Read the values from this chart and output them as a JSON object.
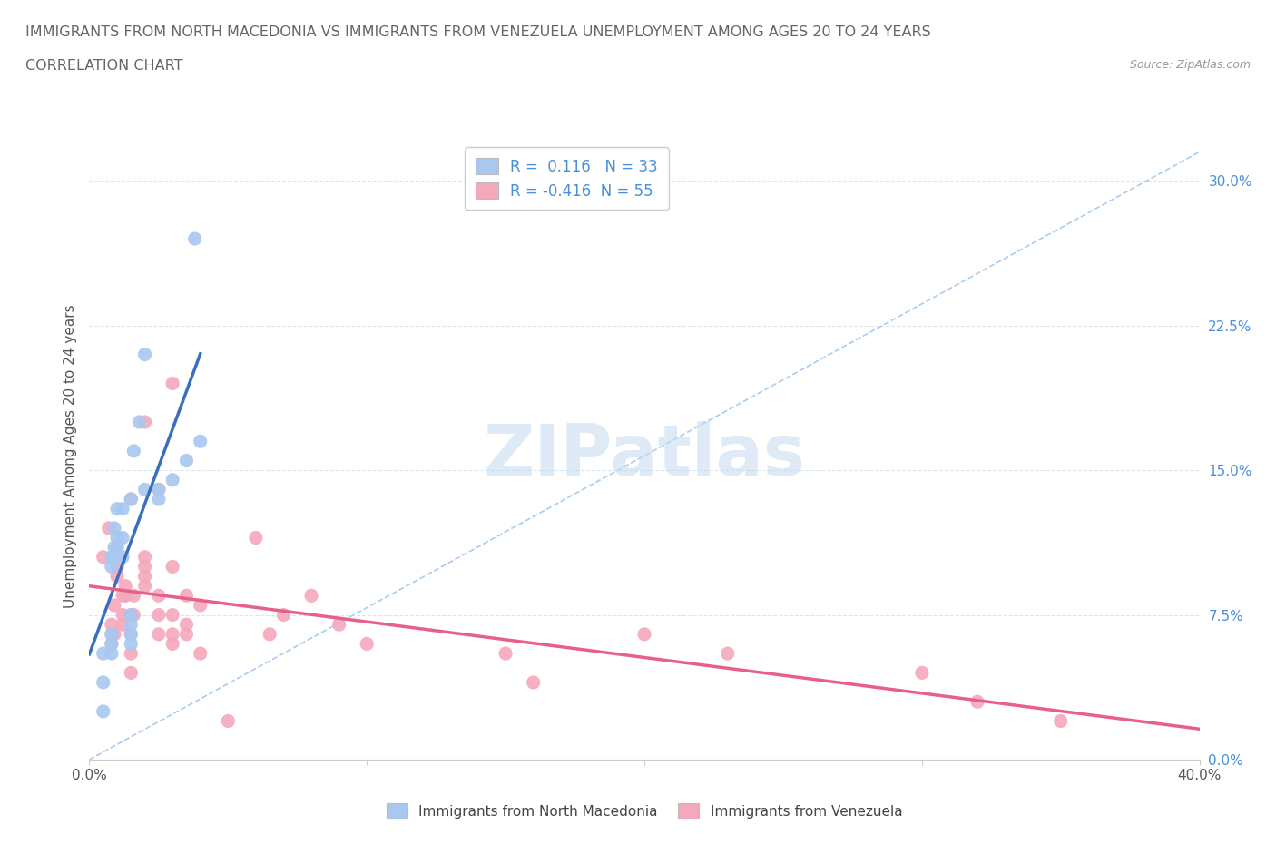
{
  "title_line1": "IMMIGRANTS FROM NORTH MACEDONIA VS IMMIGRANTS FROM VENEZUELA UNEMPLOYMENT AMONG AGES 20 TO 24 YEARS",
  "title_line2": "CORRELATION CHART",
  "source": "Source: ZipAtlas.com",
  "ylabel": "Unemployment Among Ages 20 to 24 years",
  "watermark": "ZIPatlas",
  "xlim": [
    0.0,
    0.4
  ],
  "ylim": [
    0.0,
    0.315
  ],
  "yticks_right": [
    0.0,
    0.075,
    0.15,
    0.225,
    0.3
  ],
  "blue_R": 0.116,
  "blue_N": 33,
  "pink_R": -0.416,
  "pink_N": 55,
  "blue_color": "#A8C8F0",
  "pink_color": "#F4A8BC",
  "blue_line_color": "#3A6EBF",
  "pink_line_color": "#E8608A",
  "diag_line_color": "#AACCEE",
  "grid_color": "#D8E8F0",
  "title_color": "#555555",
  "right_tick_color": "#4A90D9",
  "blue_x": [
    0.005,
    0.005,
    0.005,
    0.008,
    0.008,
    0.008,
    0.008,
    0.008,
    0.009,
    0.009,
    0.009,
    0.01,
    0.01,
    0.01,
    0.01,
    0.012,
    0.012,
    0.012,
    0.015,
    0.015,
    0.015,
    0.015,
    0.015,
    0.016,
    0.018,
    0.02,
    0.02,
    0.025,
    0.025,
    0.03,
    0.035,
    0.038,
    0.04
  ],
  "blue_y": [
    0.025,
    0.04,
    0.055,
    0.055,
    0.06,
    0.065,
    0.1,
    0.105,
    0.105,
    0.11,
    0.12,
    0.105,
    0.11,
    0.115,
    0.13,
    0.105,
    0.115,
    0.13,
    0.06,
    0.065,
    0.07,
    0.075,
    0.135,
    0.16,
    0.175,
    0.14,
    0.21,
    0.135,
    0.14,
    0.145,
    0.155,
    0.27,
    0.165
  ],
  "pink_x": [
    0.005,
    0.007,
    0.008,
    0.008,
    0.008,
    0.009,
    0.009,
    0.01,
    0.01,
    0.01,
    0.012,
    0.012,
    0.012,
    0.013,
    0.013,
    0.015,
    0.015,
    0.015,
    0.015,
    0.015,
    0.016,
    0.016,
    0.02,
    0.02,
    0.02,
    0.02,
    0.02,
    0.025,
    0.025,
    0.025,
    0.025,
    0.03,
    0.03,
    0.03,
    0.03,
    0.03,
    0.035,
    0.035,
    0.035,
    0.04,
    0.04,
    0.05,
    0.06,
    0.065,
    0.07,
    0.08,
    0.09,
    0.1,
    0.15,
    0.16,
    0.2,
    0.23,
    0.3,
    0.32,
    0.35
  ],
  "pink_y": [
    0.105,
    0.12,
    0.06,
    0.065,
    0.07,
    0.065,
    0.08,
    0.095,
    0.1,
    0.11,
    0.07,
    0.075,
    0.085,
    0.085,
    0.09,
    0.045,
    0.055,
    0.065,
    0.075,
    0.135,
    0.075,
    0.085,
    0.09,
    0.095,
    0.1,
    0.105,
    0.175,
    0.065,
    0.075,
    0.085,
    0.14,
    0.06,
    0.065,
    0.075,
    0.1,
    0.195,
    0.065,
    0.07,
    0.085,
    0.055,
    0.08,
    0.02,
    0.115,
    0.065,
    0.075,
    0.085,
    0.07,
    0.06,
    0.055,
    0.04,
    0.065,
    0.055,
    0.045,
    0.03,
    0.02
  ]
}
